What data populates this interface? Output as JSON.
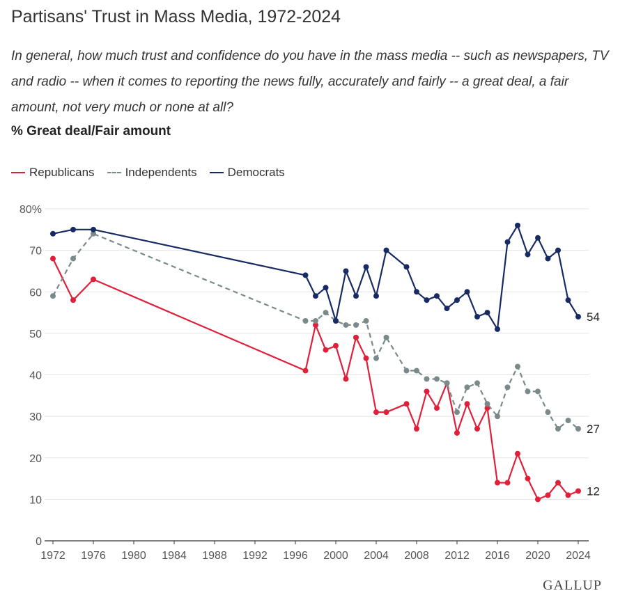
{
  "title": "Partisans' Trust in Mass Media, 1972-2024",
  "question": "In general, how much trust and confidence do you have in the mass media -- such as newspapers, TV and radio -- when it comes to reporting the news fully, accurately and fairly -- a great deal, a fair amount, not very much or none at all?",
  "measure": "% Great deal/Fair amount",
  "brand": "GALLUP",
  "chart_data": {
    "type": "line",
    "title": "Partisans' Trust in Mass Media, 1972-2024",
    "xlabel": "",
    "ylabel": "",
    "xlim": [
      1972,
      2024
    ],
    "ylim": [
      0,
      80
    ],
    "x_ticks": [
      "1972",
      "1976",
      "1980",
      "1984",
      "1988",
      "1992",
      "1996",
      "2000",
      "2004",
      "2008",
      "2012",
      "2016",
      "2020",
      "2024"
    ],
    "y_ticks": [
      "80%",
      "70",
      "60",
      "50",
      "40",
      "30",
      "20",
      "10",
      "0"
    ],
    "y_tick_values": [
      80,
      70,
      60,
      50,
      40,
      30,
      20,
      10,
      0
    ],
    "x_tick_values": [
      1972,
      1976,
      1980,
      1984,
      1988,
      1992,
      1996,
      2000,
      2004,
      2008,
      2012,
      2016,
      2020,
      2024
    ],
    "grid": true,
    "legend_position": "top-left",
    "series": [
      {
        "name": "Republicans",
        "color": "#e0203a",
        "dash": false,
        "end_label": "12",
        "x": [
          1972,
          1974,
          1976,
          1997,
          1998,
          1999,
          2000,
          2001,
          2002,
          2003,
          2004,
          2005,
          2007,
          2008,
          2009,
          2010,
          2011,
          2012,
          2013,
          2014,
          2015,
          2016,
          2017,
          2018,
          2019,
          2020,
          2021,
          2022,
          2023,
          2024
        ],
        "values": [
          68,
          58,
          63,
          41,
          52,
          46,
          47,
          39,
          49,
          44,
          31,
          31,
          33,
          27,
          36,
          32,
          38,
          26,
          33,
          27,
          32,
          14,
          14,
          21,
          15,
          10,
          11,
          14,
          11,
          12
        ]
      },
      {
        "name": "Independents",
        "color": "#7a8a8a",
        "dash": true,
        "end_label": "27",
        "x": [
          1972,
          1974,
          1976,
          1997,
          1998,
          1999,
          2000,
          2001,
          2002,
          2003,
          2004,
          2005,
          2007,
          2008,
          2009,
          2010,
          2011,
          2012,
          2013,
          2014,
          2015,
          2016,
          2017,
          2018,
          2019,
          2020,
          2021,
          2022,
          2023,
          2024
        ],
        "values": [
          59,
          68,
          74,
          53,
          53,
          55,
          53,
          52,
          52,
          53,
          44,
          49,
          41,
          41,
          39,
          39,
          38,
          31,
          37,
          38,
          33,
          30,
          37,
          42,
          36,
          36,
          31,
          27,
          29,
          27
        ]
      },
      {
        "name": "Democrats",
        "color": "#172a63",
        "dash": false,
        "end_label": "54",
        "x": [
          1972,
          1974,
          1976,
          1997,
          1998,
          1999,
          2000,
          2001,
          2002,
          2003,
          2004,
          2005,
          2007,
          2008,
          2009,
          2010,
          2011,
          2012,
          2013,
          2014,
          2015,
          2016,
          2017,
          2018,
          2019,
          2020,
          2021,
          2022,
          2023,
          2024
        ],
        "values": [
          74,
          75,
          75,
          64,
          59,
          61,
          53,
          65,
          59,
          66,
          59,
          70,
          66,
          60,
          58,
          59,
          56,
          58,
          60,
          54,
          55,
          51,
          72,
          76,
          69,
          73,
          68,
          70,
          58,
          54
        ]
      }
    ]
  }
}
